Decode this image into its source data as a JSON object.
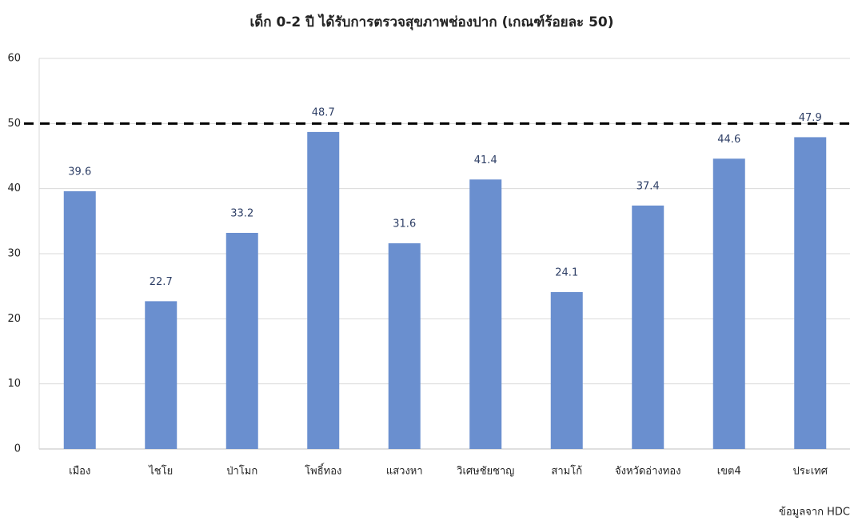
{
  "chart_data": {
    "type": "bar",
    "title": "เด็ก 0-2 ปี ได้รับการตรวจสุขภาพช่องปาก (เกณฑ์ร้อยละ 50)",
    "categories": [
      "เมือง",
      "ไชโย",
      "ป่าโมก",
      "โพธิ์ทอง",
      "แสวงหา",
      "วิเศษชัยชาญ",
      "สามโก้",
      "จังหวัดอ่างทอง",
      "เขต4",
      "ประเทศ"
    ],
    "values": [
      39.6,
      22.7,
      33.2,
      48.7,
      31.6,
      41.4,
      24.1,
      37.4,
      44.6,
      47.9
    ],
    "color": "#6a8fcf",
    "ylim": [
      0,
      60
    ],
    "yticks": [
      0,
      10,
      20,
      30,
      40,
      50,
      60
    ],
    "grid": true,
    "reference_line": {
      "value": 50,
      "color": "#000000",
      "style": "dashed"
    },
    "source": "ข้อมูลจาก HDC"
  }
}
